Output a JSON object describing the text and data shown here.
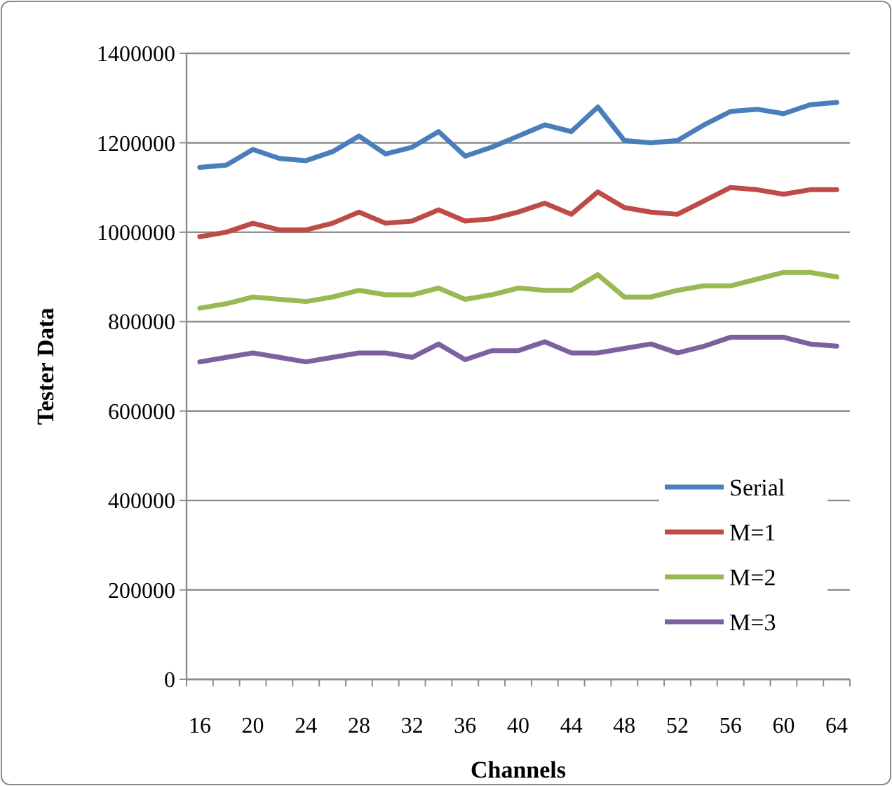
{
  "chart_data": {
    "type": "line",
    "xlabel": "Channels",
    "ylabel": "Tester Data",
    "categories": [
      "16",
      null,
      "20",
      null,
      "24",
      null,
      "28",
      null,
      "32",
      null,
      "36",
      null,
      "40",
      null,
      "44",
      null,
      "48",
      null,
      "52",
      null,
      "56",
      null,
      "60",
      null,
      "64"
    ],
    "series": [
      {
        "name": "Serial",
        "color": "#4a7ebb",
        "values": [
          1145000,
          1150000,
          1185000,
          1165000,
          1160000,
          1180000,
          1215000,
          1175000,
          1190000,
          1225000,
          1170000,
          1190000,
          1215000,
          1240000,
          1225000,
          1280000,
          1205000,
          1200000,
          1205000,
          1240000,
          1270000,
          1275000,
          1265000,
          1285000,
          1290000
        ]
      },
      {
        "name": "M=1",
        "color": "#be4b48",
        "values": [
          990000,
          1000000,
          1020000,
          1005000,
          1005000,
          1020000,
          1045000,
          1020000,
          1025000,
          1050000,
          1025000,
          1030000,
          1045000,
          1065000,
          1040000,
          1090000,
          1055000,
          1045000,
          1040000,
          1070000,
          1100000,
          1095000,
          1085000,
          1095000,
          1095000
        ]
      },
      {
        "name": "M=2",
        "color": "#98b954",
        "values": [
          830000,
          840000,
          855000,
          850000,
          845000,
          855000,
          870000,
          860000,
          860000,
          875000,
          850000,
          860000,
          875000,
          870000,
          870000,
          905000,
          855000,
          855000,
          870000,
          880000,
          880000,
          895000,
          910000,
          910000,
          900000
        ]
      },
      {
        "name": "M=3",
        "color": "#7d60a0",
        "values": [
          710000,
          720000,
          730000,
          720000,
          710000,
          720000,
          730000,
          730000,
          720000,
          750000,
          715000,
          735000,
          735000,
          755000,
          730000,
          730000,
          740000,
          750000,
          730000,
          745000,
          765000,
          765000,
          765000,
          750000,
          745000
        ]
      }
    ],
    "ylim": [
      0,
      1400000
    ],
    "yticks": [
      0,
      200000,
      400000,
      600000,
      800000,
      1000000,
      1200000,
      1400000
    ],
    "grid": "y",
    "legend": "bottom right",
    "marker": "none",
    "line_style": "solid"
  }
}
